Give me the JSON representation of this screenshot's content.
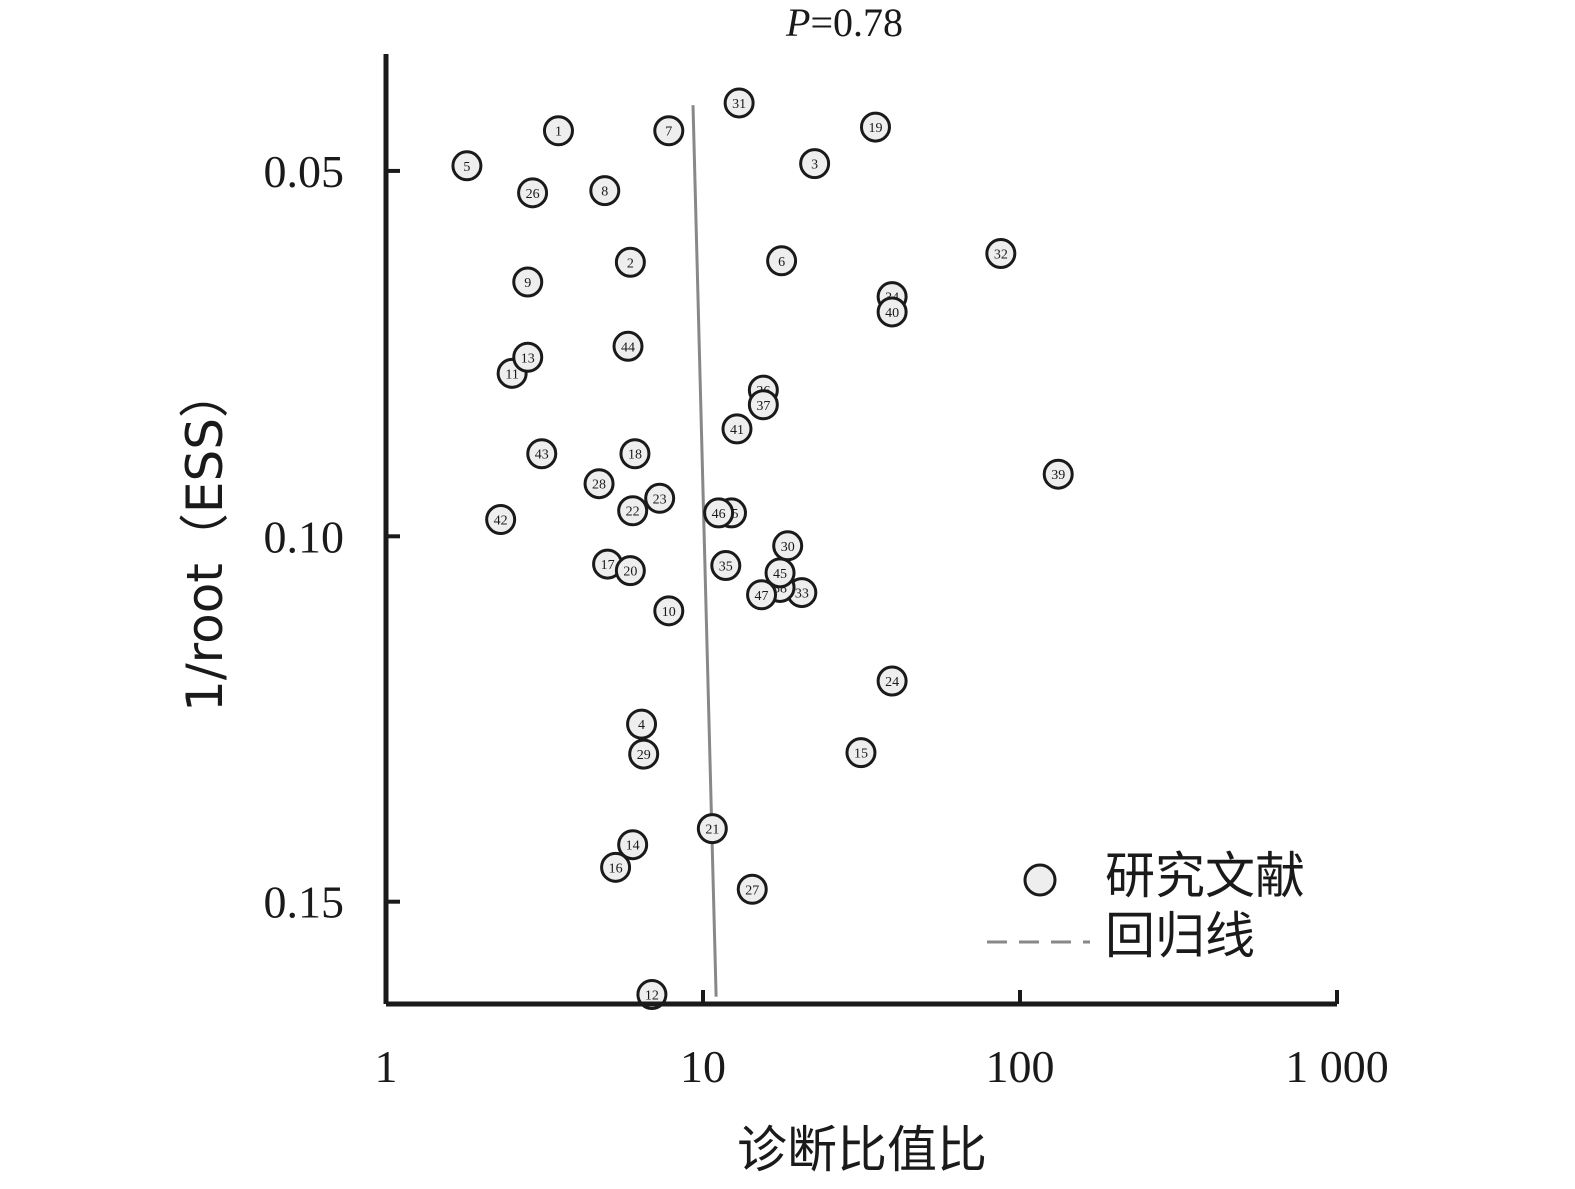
{
  "chart_data": {
    "type": "scatter",
    "title": "",
    "annotation": {
      "label": "P",
      "text": "=0.78"
    },
    "xlabel": "诊断比值比",
    "ylabel": "1/root（ESS）",
    "x_scale": "log",
    "xlim": [
      1,
      1000
    ],
    "ylim": [
      0.034,
      0.164
    ],
    "y_inverted": true,
    "x_ticks": [
      1,
      10,
      100,
      1000
    ],
    "x_tick_labels": [
      "1",
      "10",
      "100",
      "1 000"
    ],
    "y_ticks": [
      0.05,
      0.1,
      0.15
    ],
    "y_tick_labels": [
      "0.05",
      "0.10",
      "0.15"
    ],
    "legend": {
      "position": "bottom-right",
      "items": [
        {
          "label": "研究文献",
          "marker": "circle"
        },
        {
          "label": "回归线",
          "marker": "dashed-line"
        }
      ]
    },
    "regression_line": {
      "x": [
        9.3,
        11.0
      ],
      "y": [
        0.041,
        0.163
      ]
    },
    "colors": {
      "point_fill": "#eeeeee",
      "point_stroke": "#1a1a1a",
      "regression": "#888888",
      "axis": "#1a1a1a"
    },
    "points": [
      {
        "id": "1",
        "x": 3.5,
        "y": 0.0445
      },
      {
        "id": "2",
        "x": 5.9,
        "y": 0.0625
      },
      {
        "id": "3",
        "x": 22.5,
        "y": 0.049
      },
      {
        "id": "4",
        "x": 6.4,
        "y": 0.1257
      },
      {
        "id": "5",
        "x": 1.8,
        "y": 0.0493
      },
      {
        "id": "6",
        "x": 17.7,
        "y": 0.0623
      },
      {
        "id": "7",
        "x": 7.8,
        "y": 0.0445
      },
      {
        "id": "8",
        "x": 4.9,
        "y": 0.0527
      },
      {
        "id": "9",
        "x": 2.8,
        "y": 0.0652
      },
      {
        "id": "10",
        "x": 7.8,
        "y": 0.1102
      },
      {
        "id": "11",
        "x": 2.5,
        "y": 0.0777
      },
      {
        "id": "12",
        "x": 6.9,
        "y": 0.1627
      },
      {
        "id": "13",
        "x": 2.8,
        "y": 0.0755
      },
      {
        "id": "14",
        "x": 6.0,
        "y": 0.1422
      },
      {
        "id": "15",
        "x": 31.5,
        "y": 0.1296
      },
      {
        "id": "16",
        "x": 5.3,
        "y": 0.1453
      },
      {
        "id": "17",
        "x": 5.0,
        "y": 0.1038
      },
      {
        "id": "18",
        "x": 6.1,
        "y": 0.0887
      },
      {
        "id": "19",
        "x": 35.0,
        "y": 0.044
      },
      {
        "id": "20",
        "x": 5.9,
        "y": 0.1047
      },
      {
        "id": "21",
        "x": 10.7,
        "y": 0.14
      },
      {
        "id": "22",
        "x": 6.0,
        "y": 0.0965
      },
      {
        "id": "23",
        "x": 7.3,
        "y": 0.0948
      },
      {
        "id": "24",
        "x": 39.5,
        "y": 0.1198
      },
      {
        "id": "25",
        "x": 12.3,
        "y": 0.0968
      },
      {
        "id": "26",
        "x": 2.9,
        "y": 0.053
      },
      {
        "id": "27",
        "x": 14.3,
        "y": 0.1483
      },
      {
        "id": "28",
        "x": 4.7,
        "y": 0.0928
      },
      {
        "id": "29",
        "x": 6.5,
        "y": 0.1298
      },
      {
        "id": "30",
        "x": 18.5,
        "y": 0.1013
      },
      {
        "id": "31",
        "x": 13.0,
        "y": 0.0407
      },
      {
        "id": "32",
        "x": 87.0,
        "y": 0.0613
      },
      {
        "id": "33",
        "x": 20.5,
        "y": 0.1077
      },
      {
        "id": "34",
        "x": 39.5,
        "y": 0.0672
      },
      {
        "id": "35",
        "x": 11.8,
        "y": 0.104
      },
      {
        "id": "36",
        "x": 15.5,
        "y": 0.08
      },
      {
        "id": "37",
        "x": 15.5,
        "y": 0.082
      },
      {
        "id": "38",
        "x": 17.5,
        "y": 0.107
      },
      {
        "id": "39",
        "x": 132.0,
        "y": 0.0915
      },
      {
        "id": "40",
        "x": 39.5,
        "y": 0.0693
      },
      {
        "id": "41",
        "x": 12.8,
        "y": 0.0853
      },
      {
        "id": "42",
        "x": 2.3,
        "y": 0.0977
      },
      {
        "id": "43",
        "x": 3.1,
        "y": 0.0887
      },
      {
        "id": "44",
        "x": 5.8,
        "y": 0.074
      },
      {
        "id": "45",
        "x": 17.5,
        "y": 0.105
      },
      {
        "id": "46",
        "x": 11.2,
        "y": 0.0968
      },
      {
        "id": "47",
        "x": 15.3,
        "y": 0.108
      }
    ]
  }
}
